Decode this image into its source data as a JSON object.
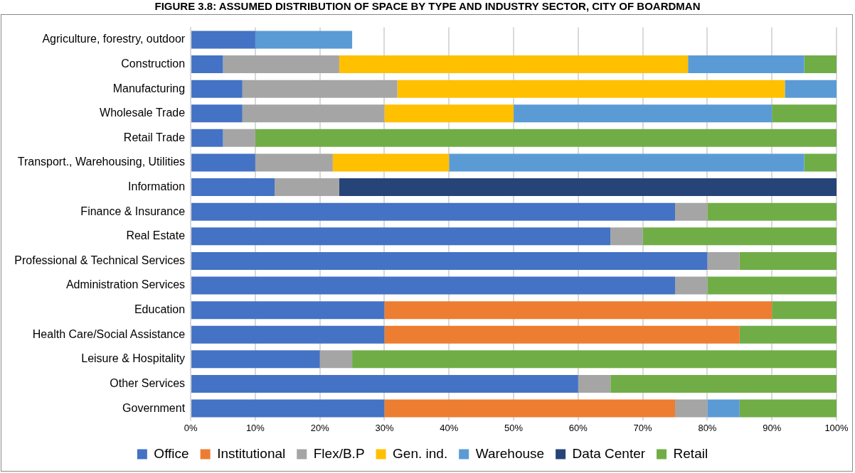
{
  "chart_data": {
    "type": "bar",
    "orientation": "horizontal",
    "stacked": true,
    "title": "FIGURE 3.8: ASSUMED DISTRIBUTION OF SPACE BY TYPE AND INDUSTRY SECTOR, CITY OF BOARDMAN",
    "categories": [
      "Agriculture, forestry, outdoor",
      "Construction",
      "Manufacturing",
      "Wholesale Trade",
      "Retail Trade",
      "Transport., Warehousing, Utilities",
      "Information",
      "Finance & Insurance",
      "Real Estate",
      "Professional & Technical Services",
      "Administration Services",
      "Education",
      "Health Care/Social Assistance",
      "Leisure & Hospitality",
      "Other Services",
      "Government"
    ],
    "series": [
      {
        "name": "Office",
        "color": "#4472c4",
        "values": [
          10,
          5,
          8,
          8,
          5,
          10,
          13,
          75,
          65,
          80,
          75,
          30,
          30,
          20,
          60,
          30
        ]
      },
      {
        "name": "Institutional",
        "color": "#ed7d31",
        "values": [
          null,
          null,
          null,
          null,
          null,
          null,
          null,
          null,
          null,
          null,
          null,
          60,
          55,
          null,
          null,
          45
        ]
      },
      {
        "name": "Flex/B.P",
        "color": "#a5a5a5",
        "values": [
          null,
          18,
          24,
          22,
          5,
          12,
          10,
          5,
          5,
          5,
          5,
          null,
          null,
          5,
          5,
          5
        ]
      },
      {
        "name": "Gen. ind.",
        "color": "#ffc000",
        "values": [
          null,
          54,
          60,
          20,
          null,
          18,
          null,
          null,
          null,
          null,
          null,
          null,
          null,
          null,
          null,
          null
        ]
      },
      {
        "name": "Warehouse",
        "color": "#5b9bd5",
        "values": [
          15,
          18,
          8,
          40,
          null,
          55,
          null,
          null,
          null,
          null,
          null,
          null,
          null,
          null,
          null,
          5
        ]
      },
      {
        "name": "Data Center",
        "color": "#264478",
        "values": [
          null,
          null,
          null,
          null,
          null,
          null,
          77,
          null,
          null,
          null,
          null,
          null,
          null,
          null,
          null,
          null
        ]
      },
      {
        "name": "Retail",
        "color": "#70ad47",
        "values": [
          null,
          5,
          null,
          10,
          90,
          5,
          null,
          20,
          30,
          15,
          20,
          10,
          15,
          75,
          35,
          15
        ]
      }
    ],
    "xlim": [
      0,
      100
    ],
    "xticks": [
      {
        "value": 0,
        "label": "0%"
      },
      {
        "value": 10,
        "label": "10%"
      },
      {
        "value": 20,
        "label": "20%"
      },
      {
        "value": 30,
        "label": "30%"
      },
      {
        "value": 40,
        "label": "40%"
      },
      {
        "value": 50,
        "label": "50%"
      },
      {
        "value": 60,
        "label": "60%"
      },
      {
        "value": 70,
        "label": "70%"
      },
      {
        "value": 80,
        "label": "80%"
      },
      {
        "value": 90,
        "label": "90%"
      },
      {
        "value": 100,
        "label": "100%"
      }
    ],
    "grid": "x",
    "legend": "bottom"
  }
}
